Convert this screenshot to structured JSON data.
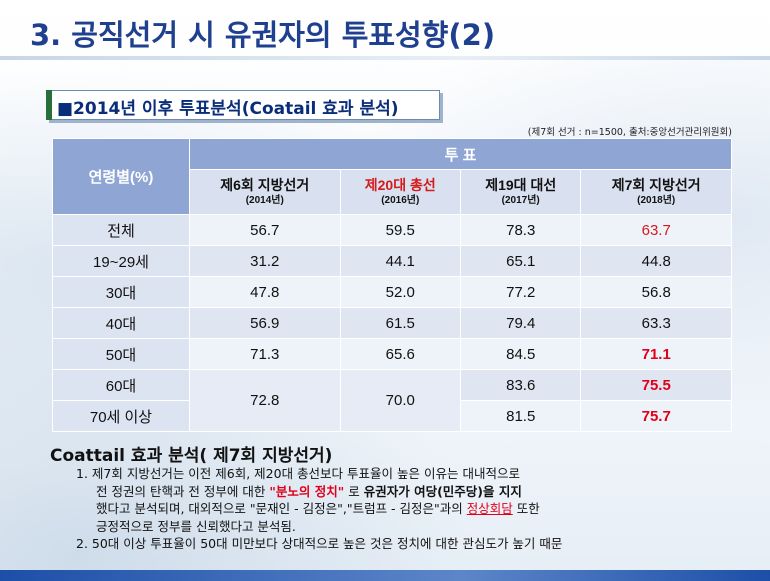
{
  "header": {
    "title": "3. 공직선거 시 유권자의 투표성향(2)"
  },
  "section": {
    "label": "■2014년 이후 투표분석(Coatail 효과 분석)"
  },
  "source_note": "(제7회 선거 : n=1500, 출처:중앙선거관리위원회)",
  "table": {
    "age_header": "연령별(%)",
    "group_header": "투 표",
    "columns": [
      {
        "label": "제6회 지방선거",
        "sub": "(2014년)"
      },
      {
        "label": "제20대 총선",
        "sub": "(2016년)"
      },
      {
        "label": "제19대 대선",
        "sub": "(2017년)"
      },
      {
        "label": "제7회 지방선거",
        "sub": "(2018년)"
      }
    ],
    "rows": [
      {
        "age": "전체",
        "v": [
          "56.7",
          "59.5",
          "78.3",
          "63.7"
        ]
      },
      {
        "age": "19~29세",
        "v": [
          "31.2",
          "44.1",
          "65.1",
          "44.8"
        ]
      },
      {
        "age": "30대",
        "v": [
          "47.8",
          "52.0",
          "77.2",
          "56.8"
        ]
      },
      {
        "age": "40대",
        "v": [
          "56.9",
          "61.5",
          "79.4",
          "63.3"
        ]
      },
      {
        "age": "50대",
        "v": [
          "71.3",
          "65.6",
          "84.5",
          "71.1"
        ]
      },
      {
        "age": "60대",
        "v": [
          "72.8",
          "70.0",
          "83.6",
          "75.5"
        ]
      },
      {
        "age": "70세 이상",
        "v": [
          "",
          "",
          "81.5",
          "75.7"
        ]
      }
    ]
  },
  "analysis": {
    "title": "Coattail 효과 분석( 제7회 지방선거)",
    "item1_a": "1.  제7회 지방선거는 이전 제6회, 제20대 총선보다 투표율이 높은 이유는 대내적으로",
    "item1_b1": "전 정권의 탄핵과 전 정부에 대한",
    "item1_b_quote": "\"분노의 정치\"",
    "item1_b2": "로",
    "item1_b_bold": "유권자가 여당(민주당)을 지지",
    "item1_c1": "했다고 분석되며, 대외적으로 \"문재인 - 김정은\",\"트럼프 - 김정은\"과의",
    "item1_c_link": "정상회담",
    "item1_c2": "또한",
    "item1_d": "긍정적으로  정부를 신뢰했다고 분석됨.",
    "item2": "2.  50대 이상 투표율이 50대 미만보다 상대적으로 높은 것은 정치에 대한 관심도가 높기 때문"
  }
}
